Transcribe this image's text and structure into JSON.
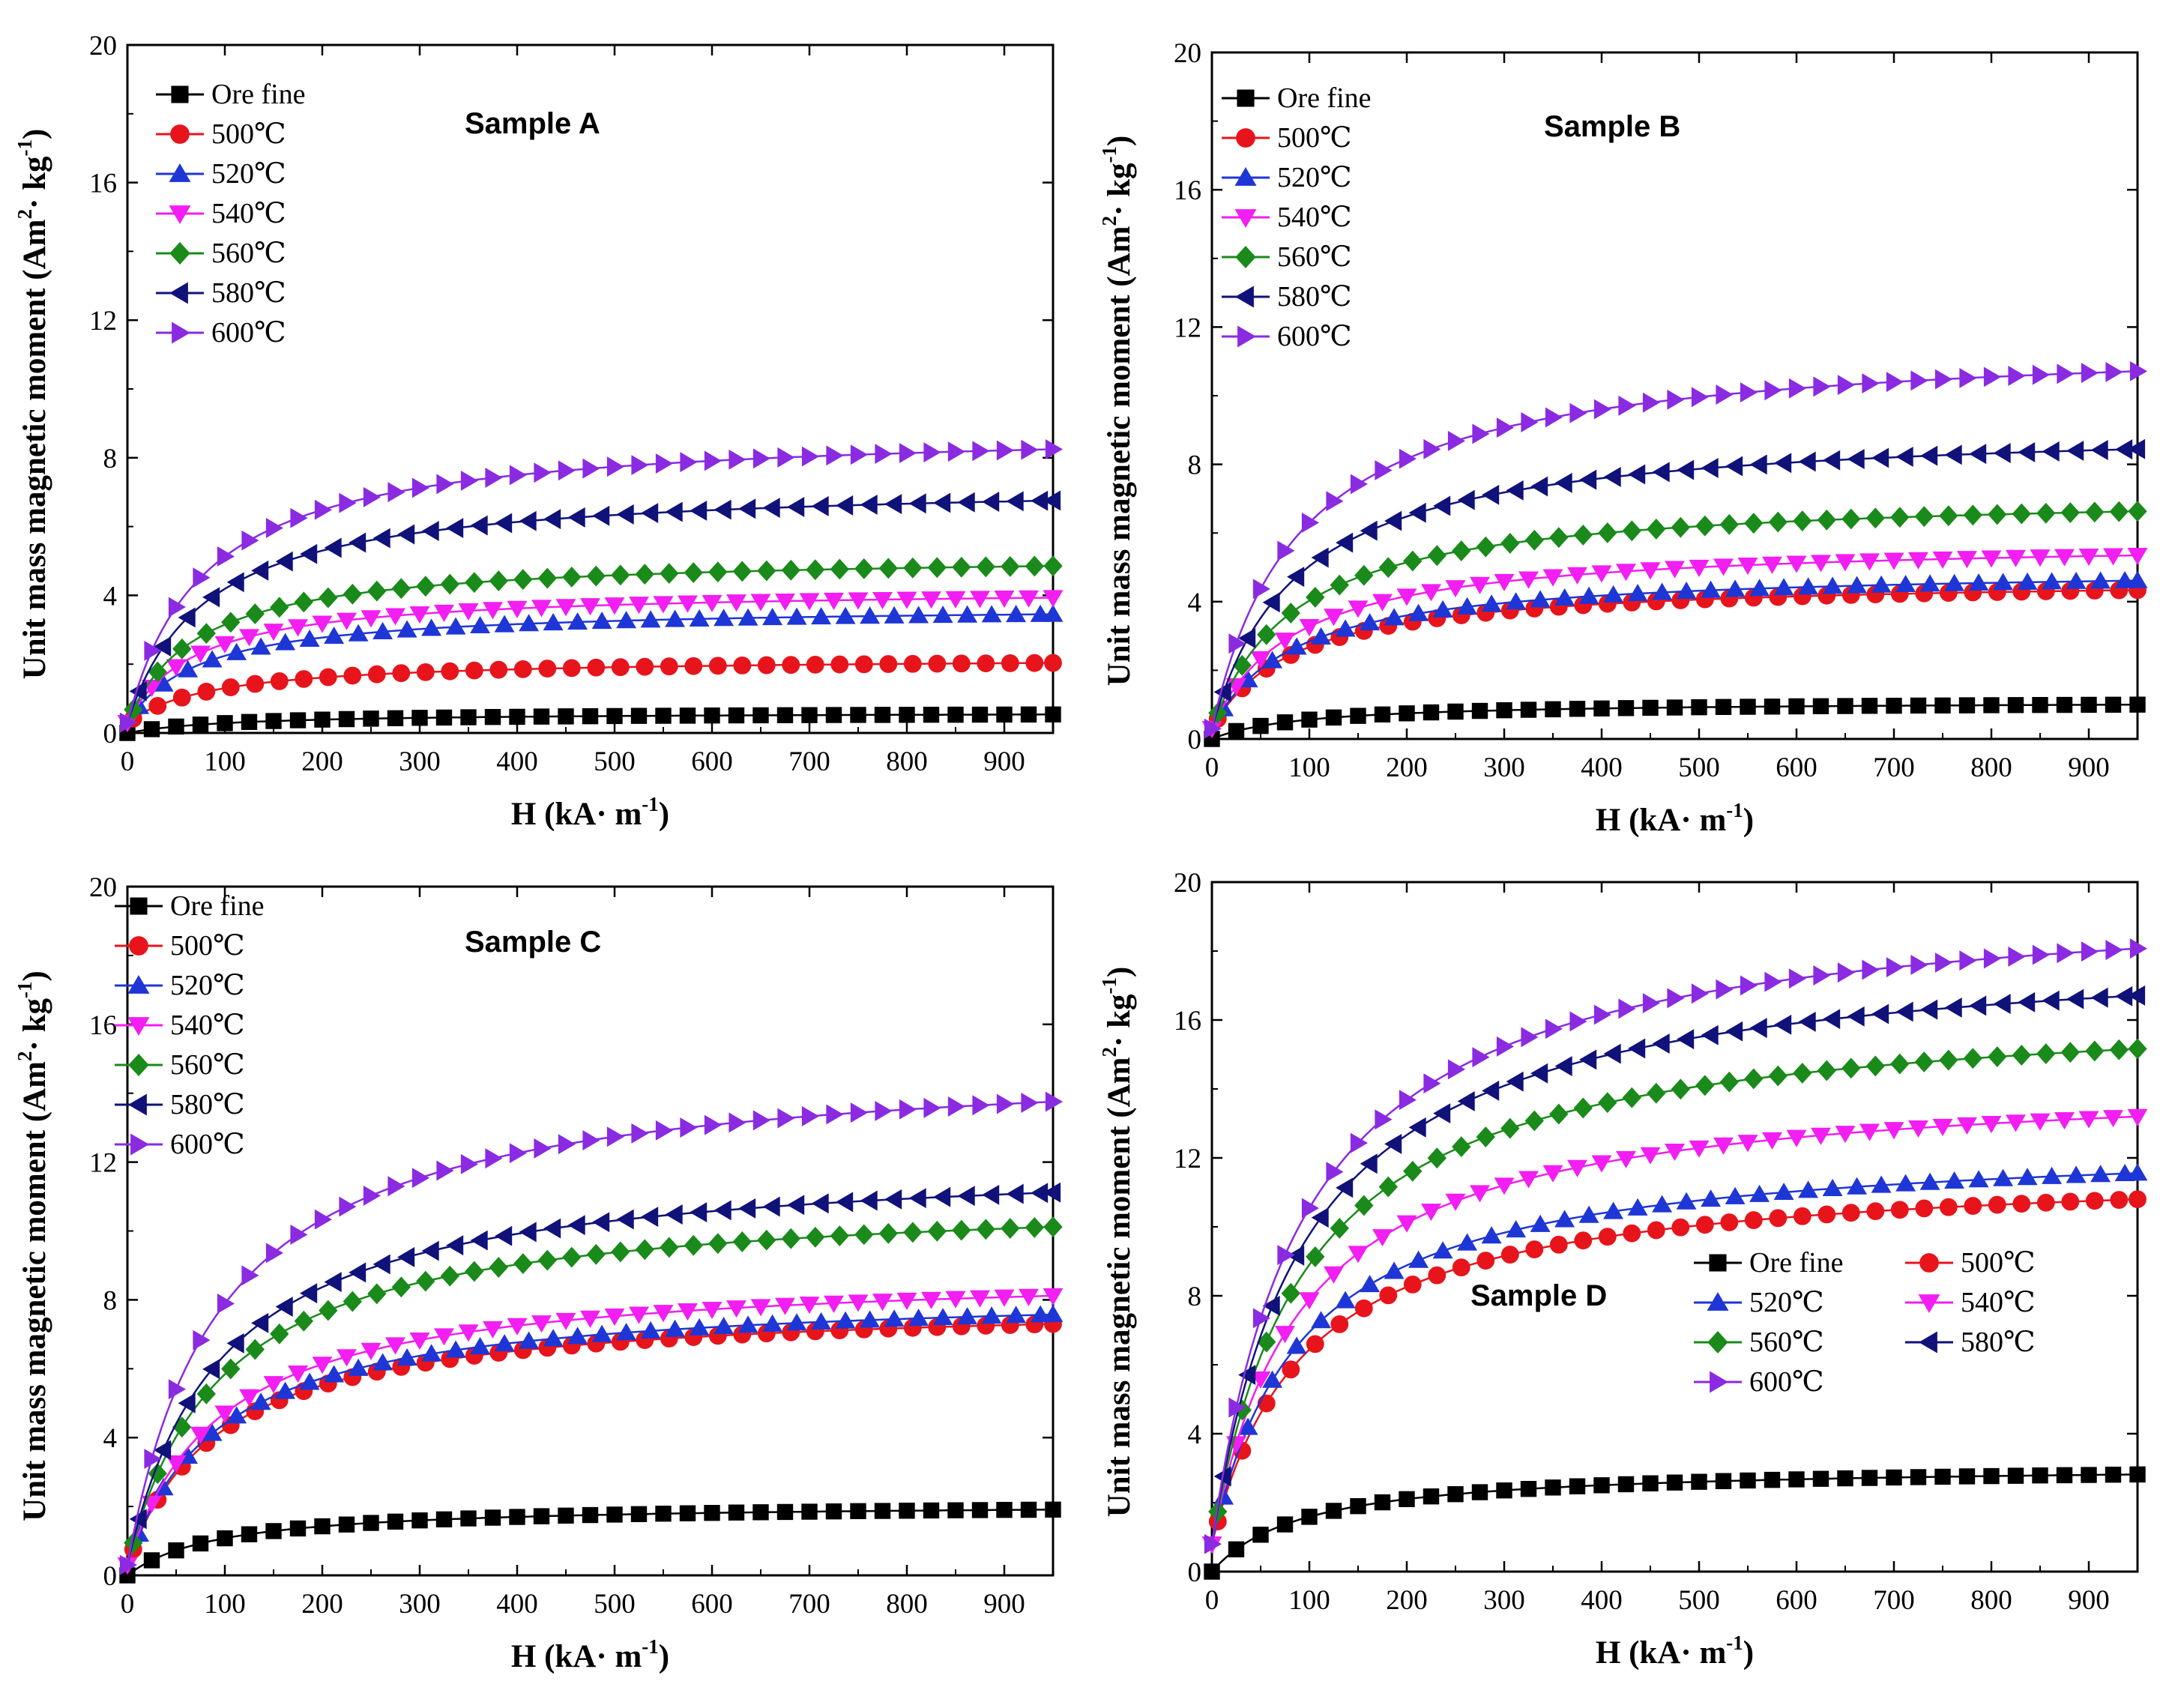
{
  "chart_data": [
    {
      "type": "line",
      "title": "Sample A",
      "xlabel": "H (kA· m-1)",
      "ylabel": "Unit mass magnetic moment (Am2· kg-1)",
      "xlim": [
        0,
        950
      ],
      "ylim": [
        0,
        20
      ],
      "xticks": [
        0,
        100,
        200,
        300,
        400,
        500,
        600,
        700,
        800,
        900
      ],
      "yticks": [
        0,
        4,
        8,
        12,
        16,
        20
      ],
      "legend_position": "top-left",
      "legend_columns": 1,
      "series": [
        {
          "name": "Ore fine",
          "saturation": 0.6,
          "h_half": 110,
          "start": 0.0
        },
        {
          "name": "500℃",
          "saturation": 2.2,
          "h_half": 90,
          "start": 0.3
        },
        {
          "name": "520℃",
          "saturation": 3.7,
          "h_half": 75,
          "start": 0.3
        },
        {
          "name": "540℃",
          "saturation": 4.2,
          "h_half": 70,
          "start": 0.3
        },
        {
          "name": "560℃",
          "saturation": 5.2,
          "h_half": 72,
          "start": 0.3
        },
        {
          "name": "580℃",
          "saturation": 7.3,
          "h_half": 80,
          "start": 0.3
        },
        {
          "name": "600℃",
          "saturation": 8.9,
          "h_half": 78,
          "start": 0.3
        }
      ]
    },
    {
      "type": "line",
      "title": "Sample B",
      "xlabel": "H (kA· m-1)",
      "ylabel": "Unit mass magnetic moment (Am2· kg-1)",
      "xlim": [
        0,
        950
      ],
      "ylim": [
        0,
        20
      ],
      "xticks": [
        0,
        100,
        200,
        300,
        400,
        500,
        600,
        700,
        800,
        900
      ],
      "yticks": [
        0,
        4,
        8,
        12,
        16,
        20
      ],
      "legend_position": "top-left",
      "legend_columns": 1,
      "series": [
        {
          "name": "Ore fine",
          "saturation": 1.1,
          "h_half": 95,
          "start": 0.0
        },
        {
          "name": "500℃",
          "saturation": 4.7,
          "h_half": 85,
          "start": 0.3
        },
        {
          "name": "520℃",
          "saturation": 5.0,
          "h_half": 85,
          "start": 0.3
        },
        {
          "name": "540℃",
          "saturation": 5.8,
          "h_half": 85,
          "start": 0.3
        },
        {
          "name": "560℃",
          "saturation": 7.2,
          "h_half": 85,
          "start": 0.3
        },
        {
          "name": "580℃",
          "saturation": 9.2,
          "h_half": 88,
          "start": 0.3
        },
        {
          "name": "600℃",
          "saturation": 11.7,
          "h_half": 90,
          "start": 0.3
        }
      ]
    },
    {
      "type": "line",
      "title": "Sample C",
      "xlabel": "H (kA· m-1)",
      "ylabel": "Unit mass magnetic moment (Am2· kg-1)",
      "xlim": [
        0,
        950
      ],
      "ylim": [
        0,
        20
      ],
      "xticks": [
        0,
        100,
        200,
        300,
        400,
        500,
        600,
        700,
        800,
        900
      ],
      "yticks": [
        0,
        4,
        8,
        12,
        16,
        20
      ],
      "legend_position": "top-left",
      "legend_columns": 1,
      "series": [
        {
          "name": "Ore fine",
          "saturation": 2.1,
          "h_half": 95,
          "start": 0.0
        },
        {
          "name": "500℃",
          "saturation": 8.0,
          "h_half": 95,
          "start": 0.3
        },
        {
          "name": "520℃",
          "saturation": 8.3,
          "h_half": 95,
          "start": 0.3
        },
        {
          "name": "540℃",
          "saturation": 8.9,
          "h_half": 95,
          "start": 0.3
        },
        {
          "name": "560℃",
          "saturation": 11.1,
          "h_half": 95,
          "start": 0.3
        },
        {
          "name": "580℃",
          "saturation": 12.2,
          "h_half": 95,
          "start": 0.3
        },
        {
          "name": "600℃",
          "saturation": 15.1,
          "h_half": 95,
          "start": 0.3
        }
      ]
    },
    {
      "type": "line",
      "title": "Sample D",
      "xlabel": "H (kA· m-1)",
      "ylabel": "Unit mass magnetic moment (Am2· kg-1)",
      "xlim": [
        0,
        950
      ],
      "ylim": [
        0,
        20
      ],
      "xticks": [
        0,
        100,
        200,
        300,
        400,
        500,
        600,
        700,
        800,
        900
      ],
      "yticks": [
        0,
        4,
        8,
        12,
        16,
        20
      ],
      "legend_position": "center-right",
      "legend_columns": 2,
      "series": [
        {
          "name": "Ore fine",
          "saturation": 3.1,
          "h_half": 95,
          "start": 0.0
        },
        {
          "name": "500℃",
          "saturation": 11.8,
          "h_half": 95,
          "start": 0.8
        },
        {
          "name": "520℃",
          "saturation": 12.6,
          "h_half": 92,
          "start": 0.8
        },
        {
          "name": "540℃",
          "saturation": 14.4,
          "h_half": 92,
          "start": 0.8
        },
        {
          "name": "560℃",
          "saturation": 16.6,
          "h_half": 95,
          "start": 0.8
        },
        {
          "name": "580℃",
          "saturation": 18.3,
          "h_half": 95,
          "start": 0.8
        },
        {
          "name": "600℃",
          "saturation": 19.8,
          "h_half": 95,
          "start": 0.8
        }
      ]
    }
  ],
  "styles": {
    "Ore fine": {
      "color": "#000000",
      "marker": "square"
    },
    "500℃": {
      "color": "#e8141c",
      "marker": "circle"
    },
    "520℃": {
      "color": "#1f36d6",
      "marker": "triangle-up"
    },
    "540℃": {
      "color": "#f21ef2",
      "marker": "triangle-down"
    },
    "560℃": {
      "color": "#1a8a1a",
      "marker": "diamond"
    },
    "580℃": {
      "color": "#10127a",
      "marker": "triangle-left"
    },
    "600℃": {
      "color": "#8a2be2",
      "marker": "triangle-right"
    }
  }
}
